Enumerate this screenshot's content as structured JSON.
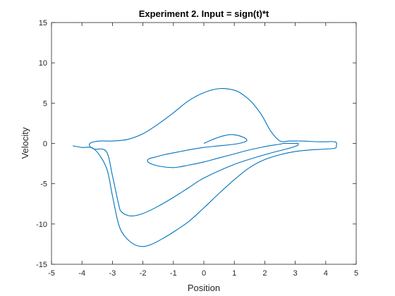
{
  "chart_data": {
    "type": "line",
    "title": "Experiment 2. Input = sign(t)*t",
    "xlabel": "Position",
    "ylabel": "Velocity",
    "xlim": [
      -5,
      5
    ],
    "ylim": [
      -15,
      15
    ],
    "xticks": [
      -5,
      -4,
      -3,
      -2,
      -1,
      0,
      1,
      2,
      3,
      4,
      5
    ],
    "yticks": [
      -15,
      -10,
      -5,
      0,
      5,
      10,
      15
    ],
    "grid": false,
    "legend": "none",
    "series": [
      {
        "color": "#0072BD",
        "x": [
          0.0,
          0.3,
          0.6,
          0.9,
          1.2,
          1.4,
          1.35,
          1.0,
          0.5,
          0.0,
          -0.5,
          -0.9,
          -1.3,
          -1.6,
          -1.8,
          -1.85,
          -1.75,
          -1.5,
          -1.0,
          -0.5,
          0.0,
          0.5,
          1.0,
          1.5,
          2.0,
          2.3,
          2.5,
          2.6,
          2.7,
          3.0,
          3.1,
          3.05,
          2.7,
          2.0,
          1.0,
          0.0,
          -0.5,
          -1.0,
          -1.5,
          -2.0,
          -2.4,
          -2.7,
          -2.8,
          -3.0,
          -3.2,
          -3.6,
          -3.75,
          -3.7,
          -3.4,
          -3.0,
          -2.5,
          -2.0,
          -1.5,
          -1.0,
          -0.5,
          0.0,
          0.5,
          1.0,
          1.3,
          1.6,
          1.9,
          2.2,
          2.5,
          2.8,
          3.0,
          3.2,
          3.8,
          4.3,
          4.35,
          4.3,
          4.0,
          3.5,
          3.0,
          2.5,
          2.0,
          1.5,
          1.0,
          0.5,
          0.0,
          -0.5,
          -1.0,
          -1.3,
          -1.7,
          -2.0,
          -2.3,
          -2.6,
          -2.8,
          -3.0,
          -3.2,
          -3.6,
          -4.0,
          -4.3
        ],
        "y": [
          0.0,
          0.5,
          0.9,
          1.1,
          0.9,
          0.5,
          0.2,
          -0.1,
          -0.3,
          -0.5,
          -0.8,
          -1.1,
          -1.4,
          -1.7,
          -1.9,
          -2.2,
          -2.5,
          -2.8,
          -3.0,
          -2.7,
          -2.3,
          -1.8,
          -1.3,
          -0.8,
          -0.4,
          -0.2,
          -0.1,
          0.0,
          0.0,
          0.0,
          0.0,
          -0.3,
          -0.7,
          -1.4,
          -2.6,
          -4.3,
          -5.5,
          -6.7,
          -7.8,
          -8.7,
          -9.0,
          -8.5,
          -7.5,
          -4.0,
          -1.0,
          -0.7,
          -0.3,
          0.1,
          0.3,
          0.3,
          0.5,
          1.2,
          2.4,
          3.8,
          5.3,
          6.3,
          6.8,
          6.6,
          6.0,
          5.0,
          3.5,
          1.5,
          0.3,
          0.3,
          0.3,
          0.3,
          0.2,
          0.2,
          -0.3,
          -0.6,
          -0.7,
          -0.8,
          -1.0,
          -1.4,
          -2.0,
          -3.0,
          -4.5,
          -6.2,
          -8.0,
          -9.7,
          -11.0,
          -11.7,
          -12.5,
          -12.8,
          -12.5,
          -11.5,
          -10.0,
          -6.5,
          -3.0,
          -0.7,
          -0.5,
          -0.3
        ]
      }
    ]
  }
}
